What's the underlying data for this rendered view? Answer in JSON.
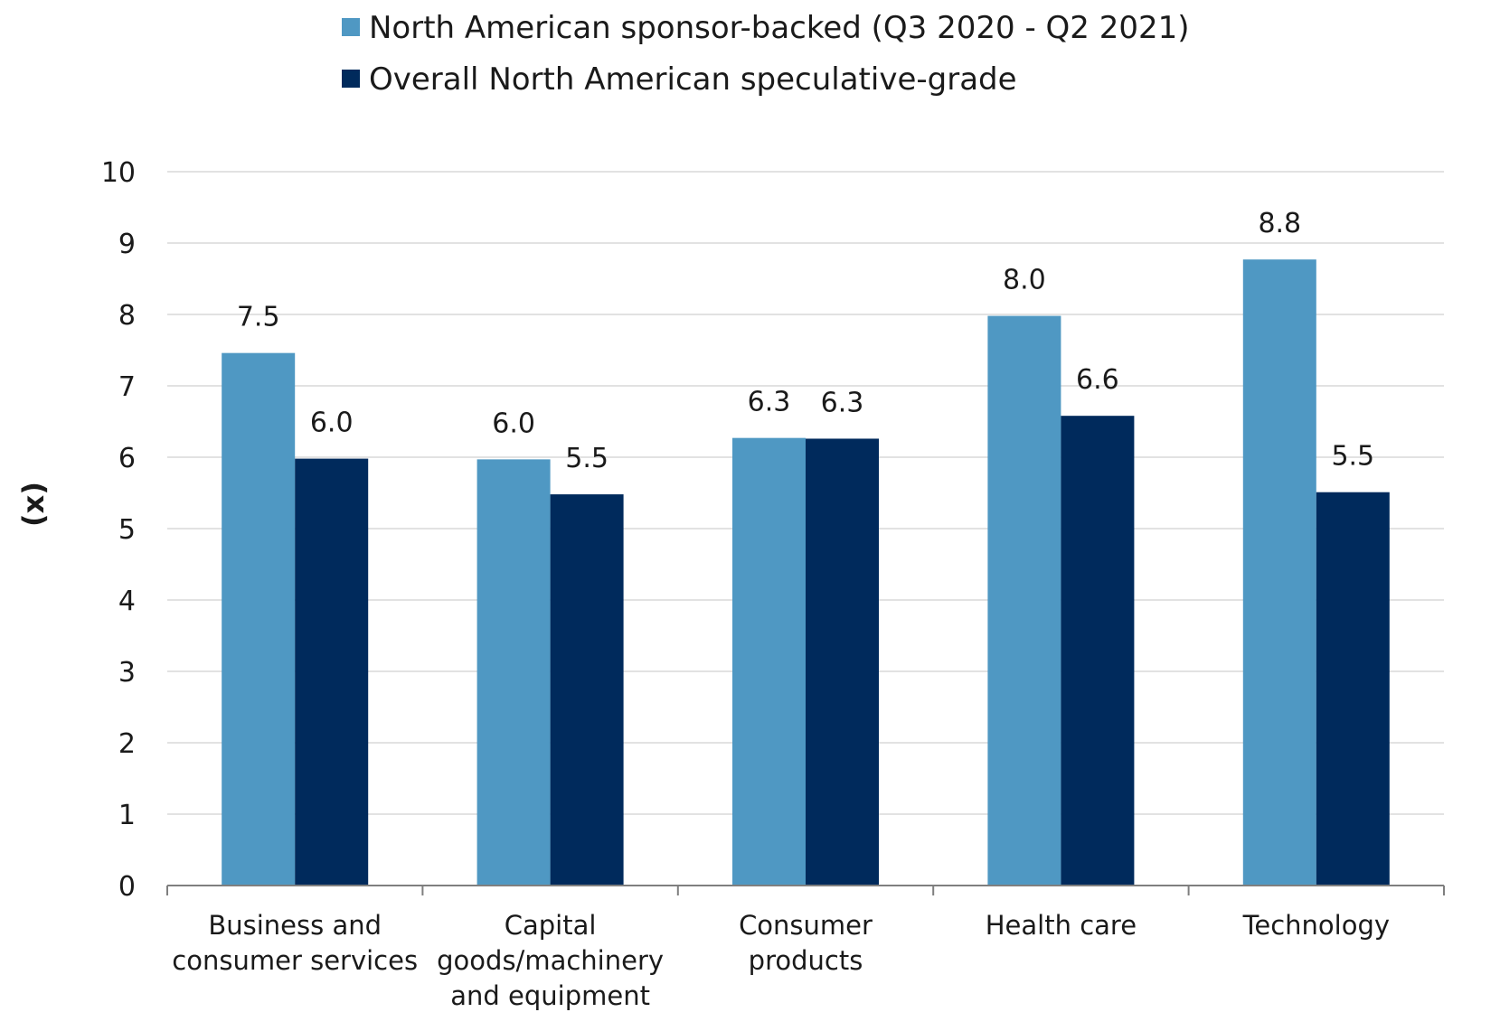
{
  "chart_data": {
    "type": "bar",
    "categories": [
      [
        "Business and",
        "consumer services"
      ],
      [
        "Capital",
        "goods/machinery",
        "and equipment"
      ],
      [
        "Consumer",
        "products"
      ],
      [
        "Health care"
      ],
      [
        "Technology"
      ]
    ],
    "series": [
      {
        "name": "North American sponsor-backed (Q3 2020 - Q2 2021)",
        "color": "#4f98c3",
        "values": [
          7.46,
          5.97,
          6.27,
          7.98,
          8.77
        ],
        "labels": [
          "7.5",
          "6.0",
          "6.3",
          "8.0",
          "8.8"
        ]
      },
      {
        "name": "Overall North American speculative-grade",
        "color": "#002a5c",
        "values": [
          5.98,
          5.48,
          6.26,
          6.58,
          5.51
        ],
        "labels": [
          "6.0",
          "5.5",
          "6.3",
          "6.6",
          "5.5"
        ]
      }
    ],
    "ylabel": "(x)",
    "ylim": [
      0,
      10
    ],
    "yticks": [
      "0",
      "1",
      "2",
      "3",
      "4",
      "5",
      "6",
      "7",
      "8",
      "9",
      "10"
    ],
    "grid": true,
    "legend": "top-center"
  }
}
